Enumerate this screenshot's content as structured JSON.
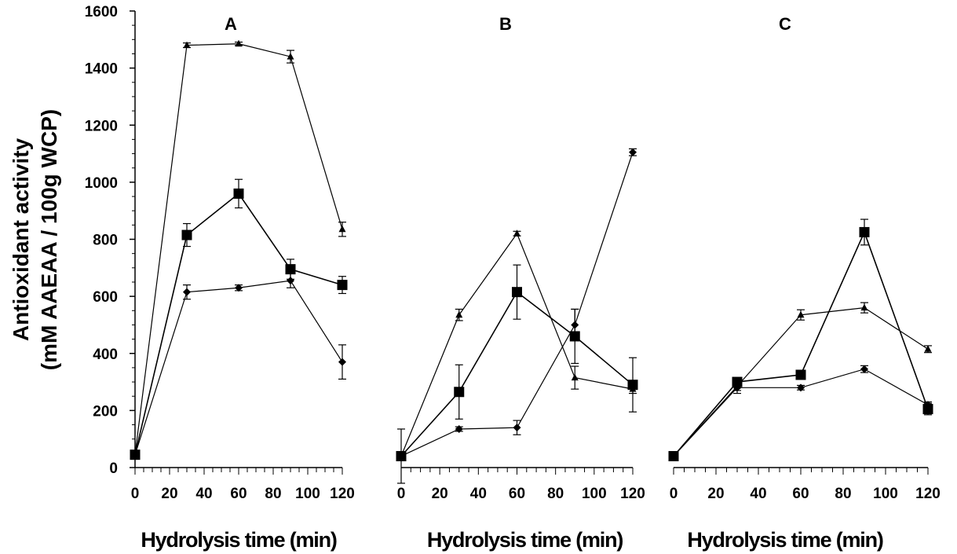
{
  "chart_data": {
    "type": "line",
    "ylabel_line1": "Antioxidant activity",
    "ylabel_line2": "(mM AAEAA / 100g WCP)",
    "ylim": [
      0,
      1600
    ],
    "yticks": [
      0,
      200,
      400,
      600,
      800,
      1000,
      1200,
      1400,
      1600
    ],
    "xlim": [
      0,
      120
    ],
    "xticks": [
      0,
      20,
      40,
      60,
      80,
      100,
      120
    ],
    "grid": false,
    "legend": "none",
    "panels": [
      {
        "panel_label": "A",
        "xlabel": "Hydrolysis time (min)",
        "x": [
          0,
          30,
          60,
          90,
          120
        ],
        "series": [
          {
            "marker": "triangle",
            "values": [
              45,
              1480,
              1485,
              1440,
              835
            ],
            "errors": [
              10,
              8,
              6,
              22,
              25
            ]
          },
          {
            "marker": "square",
            "values": [
              45,
              815,
              960,
              695,
              640
            ],
            "errors": [
              10,
              40,
              50,
              35,
              30
            ]
          },
          {
            "marker": "diamond",
            "values": [
              45,
              615,
              630,
              655,
              370
            ],
            "errors": [
              10,
              25,
              10,
              25,
              60
            ]
          }
        ]
      },
      {
        "panel_label": "B",
        "xlabel": "Hydrolysis time (min)",
        "x": [
          0,
          30,
          60,
          90,
          120
        ],
        "series": [
          {
            "marker": "triangle",
            "values": [
              40,
              535,
              820,
              315,
              275
            ],
            "errors": [
              5,
              20,
              8,
              40,
              15
            ]
          },
          {
            "marker": "square",
            "values": [
              40,
              265,
              615,
              460,
              290
            ],
            "errors": [
              95,
              95,
              95,
              95,
              95
            ]
          },
          {
            "marker": "diamond",
            "values": [
              40,
              135,
              140,
              500,
              1105
            ],
            "errors": [
              5,
              8,
              25,
              55,
              12
            ]
          }
        ]
      },
      {
        "panel_label": "C",
        "xlabel": "Hydrolysis time (min)",
        "x": [
          0,
          30,
          60,
          90,
          120
        ],
        "series": [
          {
            "marker": "triangle",
            "values": [
              40,
              285,
              535,
              560,
              415
            ],
            "errors": [
              5,
              15,
              18,
              18,
              12
            ]
          },
          {
            "marker": "square",
            "values": [
              40,
              300,
              325,
              825,
              205
            ],
            "errors": [
              5,
              10,
              10,
              45,
              20
            ]
          },
          {
            "marker": "diamond",
            "values": [
              40,
              280,
              280,
              345,
              220
            ],
            "errors": [
              5,
              20,
              8,
              12,
              10
            ]
          }
        ]
      }
    ]
  }
}
